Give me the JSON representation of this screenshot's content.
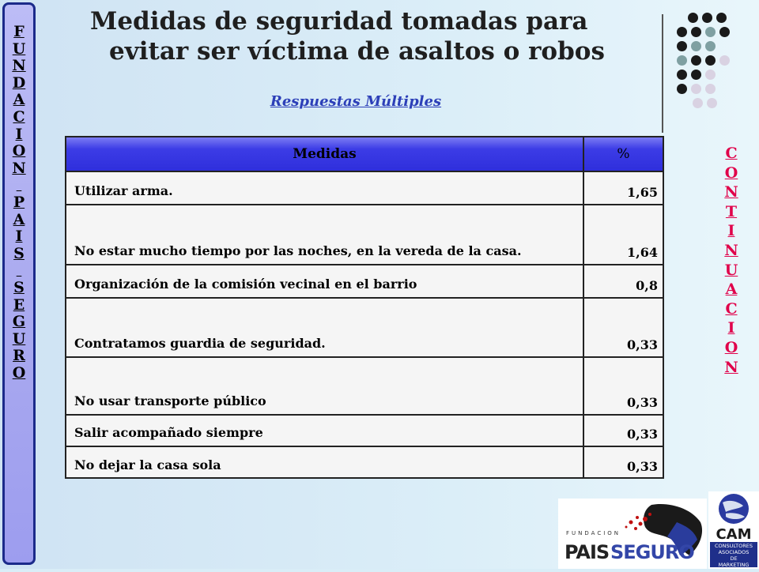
{
  "left_bar": {
    "letters": [
      "F",
      "U",
      "N",
      "D",
      "A",
      "C",
      "I",
      "O",
      "N",
      " ",
      "P",
      "A",
      "I",
      "S",
      " ",
      "S",
      "E",
      "G",
      "U",
      "R",
      "O"
    ]
  },
  "right_link": {
    "letters": [
      "C",
      "O",
      "N",
      "T",
      "I",
      "N",
      "U",
      "A",
      "C",
      "I",
      "O",
      "N"
    ],
    "color": "#e0004a"
  },
  "title": {
    "line1": "Medidas de seguridad tomadas para",
    "line2": "evitar ser víctima de asaltos o robos"
  },
  "subtitle": "Respuestas Múltiples",
  "table": {
    "headers": [
      "Medidas",
      "%"
    ],
    "rows": [
      {
        "medida": "Utilizar arma.",
        "pct": "1,65"
      },
      {
        "medida": "No estar mucho tiempo por las noches, en la vereda de la casa.",
        "pct": "1,64"
      },
      {
        "medida": "Organización de la comisión vecinal en el barrio",
        "pct": "0,8"
      },
      {
        "medida": "Contratamos guardia de seguridad.",
        "pct": "0,33"
      },
      {
        "medida": "No usar transporte público",
        "pct": "0,33"
      },
      {
        "medida": "Salir acompañado siempre",
        "pct": "0,33"
      },
      {
        "medida": "No dejar la casa sola",
        "pct": "0,33"
      }
    ]
  },
  "logos": {
    "fundacion_small": "FUNDACION",
    "fundacion_main_left": "PAIS",
    "fundacion_main_right": "SEGURO",
    "cam_main": "CAM",
    "cam_sub": [
      "CONSULTORES",
      "ASOCIADOS",
      "DE",
      "MARKETING"
    ]
  }
}
